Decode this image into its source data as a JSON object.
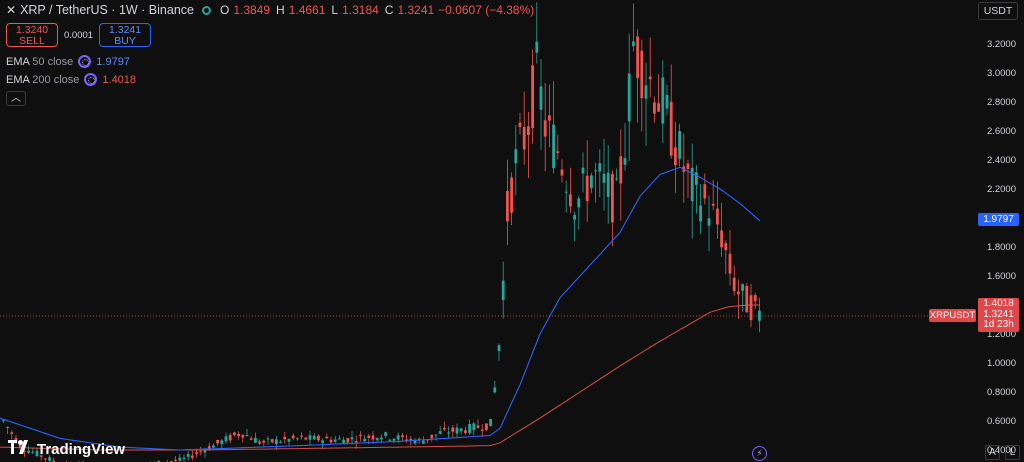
{
  "header": {
    "title": "XRP / TetherUS · 1W · Binance",
    "open_label": "O",
    "open": "1.3849",
    "high_label": "H",
    "high": "1.4661",
    "low_label": "L",
    "low": "1.3184",
    "close_label": "C",
    "close": "1.3241",
    "change": "−0.0607 (−4.38%)"
  },
  "trade": {
    "sell_price": "1.3240",
    "sell_label": "SELL",
    "spread": "0.0001",
    "buy_price": "1.3241",
    "buy_label": "BUY"
  },
  "indicators": {
    "ema50": {
      "name": "EMA",
      "params": "50 close",
      "value": "1.9797",
      "color": "#2962ff"
    },
    "ema200": {
      "name": "EMA",
      "params": "200 close",
      "value": "1.4018",
      "color": "#f05350"
    }
  },
  "currency_button": "USDT",
  "price_badges": {
    "ema50": "1.9797",
    "ema200": "1.4018",
    "last": "1.3241",
    "countdown": "1d 23h",
    "symbol": "XRPUSDT"
  },
  "logo": {
    "text": "TradingView",
    "icon": "tradingview-logo-icon"
  },
  "bottom_buttons": {
    "auto": "A",
    "log": "L"
  },
  "icons": {
    "close": "close-icon",
    "collapse": "chevron-up-icon",
    "indicator": "indicator-settings-icon",
    "flash": "lightning-icon"
  },
  "colors": {
    "up": "#26a69a",
    "down": "#f05350",
    "ema50": "#2962ff",
    "ema200": "#f05350",
    "background": "#0f0f0f"
  },
  "chart_data": {
    "type": "candlestick",
    "y_ticks": [
      "3.2000",
      "3.0000",
      "2.8000",
      "2.6000",
      "2.4000",
      "2.2000",
      "2.0000",
      "1.8000",
      "1.6000",
      "1.4000",
      "1.2000",
      "1.0000",
      "0.8000",
      "0.6000",
      "0.4000"
    ],
    "ylim": [
      0.3,
      3.5
    ],
    "last_price": 1.3241,
    "grid": false,
    "ema50_end": 1.9797,
    "ema200_end": 1.4018
  }
}
